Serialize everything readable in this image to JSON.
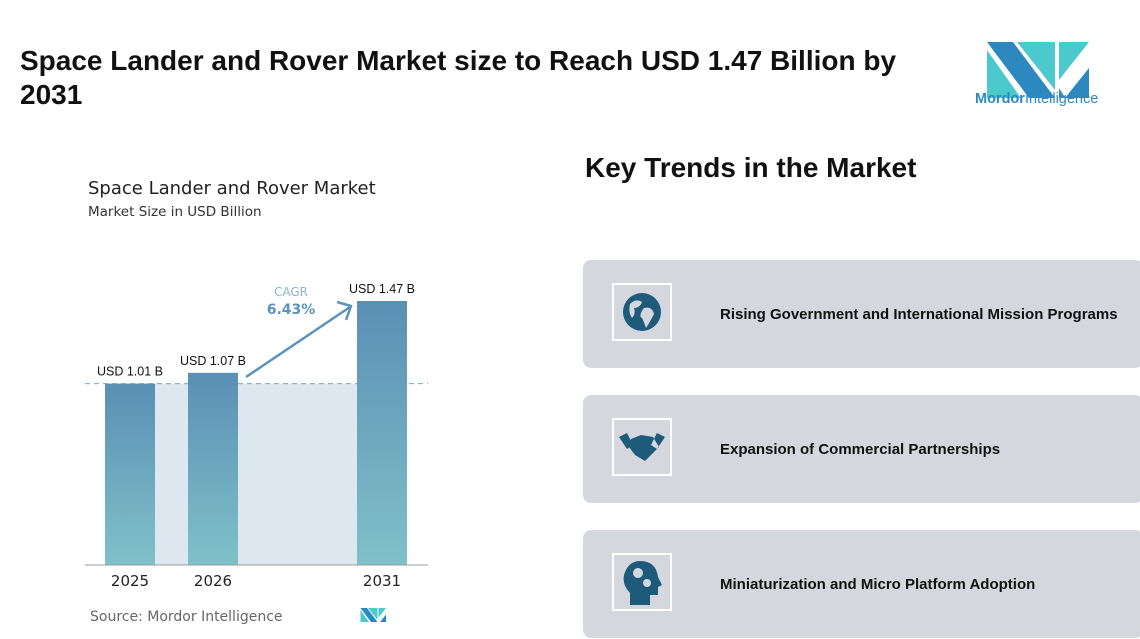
{
  "header": {
    "title": "Space Lander and Rover Market size to Reach USD 1.47 Billion by 2031",
    "logo_text": "Mordor Intelligence",
    "logo_part1": "Mordor",
    "logo_part2": "Intelligence"
  },
  "chart_data": {
    "type": "bar",
    "title": "Space Lander and Rover Market",
    "subtitle": "Market Size in USD Billion",
    "categories": [
      "2025",
      "2026",
      "2031"
    ],
    "values": [
      1.01,
      1.07,
      1.47
    ],
    "data_labels": [
      "USD 1.01 B",
      "USD 1.07 B",
      "USD 1.47 B"
    ],
    "cagr_label": "CAGR",
    "cagr_value": "6.43%",
    "source": "Source:  Mordor Intelligence",
    "colors": {
      "bar_top": "#5b8fb5",
      "bar_bottom": "#7fc1c8",
      "highlight": "#dde7ef",
      "arrow": "#5b93bd"
    }
  },
  "trends": {
    "title": "Key Trends in the Market",
    "items": [
      {
        "label": "Rising Government and International Mission Programs",
        "icon": "globe-icon"
      },
      {
        "label": "Expansion of Commercial Partnerships",
        "icon": "handshake-icon"
      },
      {
        "label": "Miniaturization and Micro Platform Adoption",
        "icon": "head-gears-icon"
      }
    ]
  }
}
